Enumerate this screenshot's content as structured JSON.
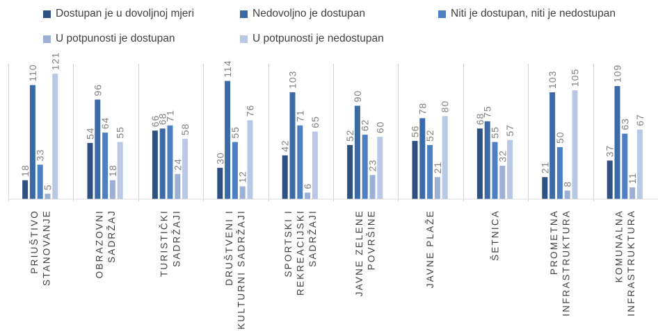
{
  "chart_data": {
    "type": "bar",
    "title": "",
    "xlabel": "",
    "ylabel": "",
    "ylim": [
      0,
      125
    ],
    "grid": false,
    "legend_position": "top",
    "categories": [
      [
        "PRIUŠTIVO",
        "STANOVANJE"
      ],
      [
        "OBRAZOVNI",
        "SADRŽAJ"
      ],
      [
        "TURISTIČKI",
        "SADRŽAJI"
      ],
      [
        "DRUŠTVENI I",
        "KULTURNI SADRŽAJI"
      ],
      [
        "SPORTSKI I",
        "REKREACIJSKI",
        "SADRŽAJI"
      ],
      [
        "JAVNE ZELENE",
        "POVRŠINE"
      ],
      [
        "JAVNE PLAŽE"
      ],
      [
        "ŠETNICA"
      ],
      [
        "PROMETNA",
        "INFRASTRUKTURA"
      ],
      [
        "KOMUNALNA",
        "INFRASTRUKTURA"
      ]
    ],
    "series": [
      {
        "name": "Dostupan je u dovoljnoj mjeri",
        "color": "#2f5182",
        "values": [
          18,
          54,
          66,
          30,
          42,
          52,
          56,
          68,
          21,
          37
        ]
      },
      {
        "name": "Nedovoljno je dostupan",
        "color": "#3b6aa7",
        "values": [
          110,
          96,
          68,
          114,
          103,
          90,
          78,
          75,
          103,
          109
        ]
      },
      {
        "name": "Niti je dostupan, niti je nedostupan",
        "color": "#4d80c3",
        "values": [
          33,
          64,
          71,
          55,
          71,
          62,
          52,
          55,
          50,
          63
        ]
      },
      {
        "name": "U potpunosti je dostupan",
        "color": "#9bb0d4",
        "values": [
          5,
          18,
          24,
          12,
          6,
          23,
          21,
          32,
          8,
          11
        ]
      },
      {
        "name": "U potpunosti je nedostupan",
        "color": "#b9c8e4",
        "values": [
          121,
          55,
          58,
          76,
          65,
          60,
          80,
          57,
          105,
          67
        ]
      }
    ]
  }
}
